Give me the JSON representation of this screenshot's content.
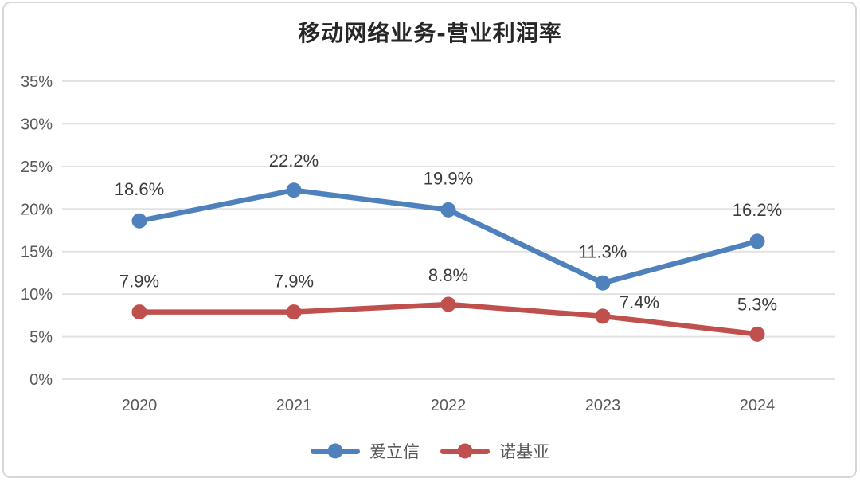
{
  "page": {
    "background": "#ffffff",
    "panel_border_color": "#d6d6d6"
  },
  "chart_data": {
    "type": "line",
    "title": "移动网络业务-营业利润率",
    "categories": [
      "2020",
      "2021",
      "2022",
      "2023",
      "2024"
    ],
    "series": [
      {
        "name": "爱立信",
        "color": "#4F81BD",
        "values": [
          18.6,
          22.2,
          19.9,
          11.3,
          16.2
        ],
        "point_labels": [
          "18.6%",
          "22.2%",
          "19.9%",
          "11.3%",
          "16.2%"
        ],
        "label_offsets": [
          [
            0,
            -40
          ],
          [
            0,
            -38
          ],
          [
            0,
            -40
          ],
          [
            0,
            -40
          ],
          [
            0,
            -40
          ]
        ]
      },
      {
        "name": "诺基亚",
        "color": "#C0504D",
        "values": [
          7.9,
          7.9,
          8.8,
          7.4,
          5.3
        ],
        "point_labels": [
          "7.9%",
          "7.9%",
          "8.8%",
          "7.4%",
          "5.3%"
        ],
        "label_offsets": [
          [
            0,
            -39
          ],
          [
            0,
            -39
          ],
          [
            0,
            -37
          ],
          [
            46,
            -18
          ],
          [
            0,
            -38
          ]
        ]
      }
    ],
    "xlabel": "",
    "ylabel": "",
    "y_axis": {
      "min": 0,
      "max": 35,
      "step": 5,
      "tick_labels": [
        "0%",
        "5%",
        "10%",
        "15%",
        "20%",
        "25%",
        "30%",
        "35%"
      ]
    },
    "grid": true,
    "legend_position": "bottom",
    "colors": {
      "grid": "#e2e2e2",
      "axis_text": "#595959",
      "data_label": "#3b3b3b",
      "title_text": "#262626"
    }
  }
}
